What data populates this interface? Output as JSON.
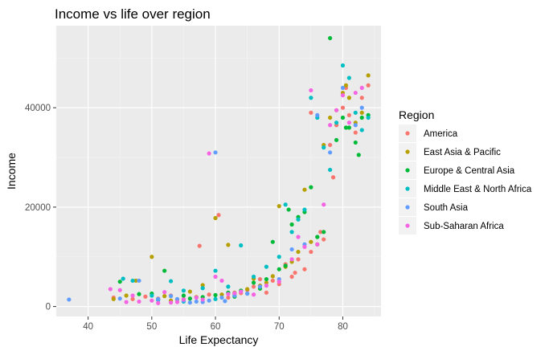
{
  "chart_data": {
    "type": "scatter",
    "title": "Income vs life over region",
    "xlabel": "Life Expectancy",
    "ylabel": "Income",
    "xlim": [
      35,
      86
    ],
    "ylim": [
      -2000,
      56500
    ],
    "x_ticks": [
      40,
      50,
      60,
      70,
      80
    ],
    "y_ticks": [
      0,
      20000,
      40000
    ],
    "grid": true,
    "legend_title": "Region",
    "legend_position": "right",
    "series": [
      {
        "name": "America",
        "color": "#F8766D",
        "points": [
          [
            44,
            1800
          ],
          [
            47,
            1500
          ],
          [
            49,
            2000
          ],
          [
            51,
            1600
          ],
          [
            53,
            2200
          ],
          [
            55,
            1500
          ],
          [
            57.5,
            12200
          ],
          [
            60.5,
            18400
          ],
          [
            63,
            2500
          ],
          [
            65,
            3300
          ],
          [
            66,
            4000
          ],
          [
            67,
            5500
          ],
          [
            69,
            5200
          ],
          [
            70,
            4500
          ],
          [
            71,
            8500
          ],
          [
            72,
            6000
          ],
          [
            73,
            9500
          ],
          [
            74,
            7500
          ],
          [
            75,
            11000
          ],
          [
            76,
            14000
          ],
          [
            77,
            13500
          ],
          [
            78,
            32500
          ],
          [
            78.5,
            26000
          ],
          [
            79,
            36500
          ],
          [
            80,
            40000
          ],
          [
            80.5,
            44000
          ],
          [
            81,
            38500
          ],
          [
            82,
            35000
          ],
          [
            83,
            42000
          ],
          [
            84,
            44500
          ],
          [
            75,
            39000
          ],
          [
            76.5,
            15000
          ],
          [
            62,
            1800
          ],
          [
            59,
            2400
          ],
          [
            68,
            2800
          ],
          [
            72.5,
            6800
          ],
          [
            64,
            2700
          ]
        ]
      },
      {
        "name": "East Asia & Pacific",
        "color": "#B79F00",
        "points": [
          [
            44,
            1500
          ],
          [
            46,
            2200
          ],
          [
            47.5,
            5200
          ],
          [
            50,
            10000
          ],
          [
            52,
            2100
          ],
          [
            54,
            1400
          ],
          [
            56,
            3000
          ],
          [
            58,
            4300
          ],
          [
            60,
            17800
          ],
          [
            62,
            12400
          ],
          [
            63,
            2800
          ],
          [
            65,
            3500
          ],
          [
            67,
            4200
          ],
          [
            68,
            4800
          ],
          [
            70,
            20200
          ],
          [
            71,
            8000
          ],
          [
            72,
            9000
          ],
          [
            73,
            11000
          ],
          [
            74,
            23500
          ],
          [
            75,
            13000
          ],
          [
            76,
            12500
          ],
          [
            77,
            32500
          ],
          [
            78,
            38000
          ],
          [
            79,
            39500
          ],
          [
            80,
            43000
          ],
          [
            80.5,
            44500
          ],
          [
            81,
            42000
          ],
          [
            82,
            37000
          ],
          [
            83,
            39000
          ],
          [
            84,
            46500
          ],
          [
            61,
            2400
          ],
          [
            57,
            1900
          ],
          [
            53,
            1200
          ],
          [
            66,
            5600
          ],
          [
            69,
            6100
          ]
        ]
      },
      {
        "name": "Europe & Central Asia",
        "color": "#00BA38",
        "points": [
          [
            45,
            5000
          ],
          [
            48,
            2500
          ],
          [
            50,
            2600
          ],
          [
            52,
            7200
          ],
          [
            55,
            2200
          ],
          [
            58,
            1900
          ],
          [
            60,
            2300
          ],
          [
            62,
            2800
          ],
          [
            64,
            3200
          ],
          [
            66,
            4800
          ],
          [
            68,
            5500
          ],
          [
            69,
            13000
          ],
          [
            70,
            7500
          ],
          [
            71,
            8200
          ],
          [
            72,
            16500
          ],
          [
            73,
            18000
          ],
          [
            74,
            19000
          ],
          [
            75,
            24000
          ],
          [
            76,
            14000
          ],
          [
            77,
            15000
          ],
          [
            78,
            54000
          ],
          [
            79,
            33500
          ],
          [
            80,
            38000
          ],
          [
            80.5,
            36000
          ],
          [
            81,
            36000
          ],
          [
            82,
            33000
          ],
          [
            83,
            38000
          ],
          [
            84,
            38500
          ],
          [
            82.5,
            30500
          ],
          [
            71.5,
            19500
          ],
          [
            67,
            3600
          ],
          [
            63,
            2000
          ],
          [
            56,
            1600
          ]
        ]
      },
      {
        "name": "Middle East & North Africa",
        "color": "#00BFC4",
        "points": [
          [
            45.5,
            5600
          ],
          [
            47,
            5200
          ],
          [
            50,
            2200
          ],
          [
            53,
            5100
          ],
          [
            55,
            3200
          ],
          [
            58,
            3700
          ],
          [
            60,
            7200
          ],
          [
            62,
            4000
          ],
          [
            64,
            12300
          ],
          [
            66,
            6000
          ],
          [
            68,
            8000
          ],
          [
            70,
            10000
          ],
          [
            71,
            20500
          ],
          [
            72,
            15000
          ],
          [
            73,
            17500
          ],
          [
            74,
            19500
          ],
          [
            75,
            42000
          ],
          [
            76,
            38000
          ],
          [
            77,
            32000
          ],
          [
            78,
            27500
          ],
          [
            79,
            37000
          ],
          [
            80,
            48500
          ],
          [
            81,
            46000
          ],
          [
            82,
            39000
          ],
          [
            83,
            35500
          ],
          [
            84,
            38000
          ],
          [
            60,
            1500
          ],
          [
            55,
            1000
          ],
          [
            51,
            1300
          ],
          [
            65,
            2600
          ]
        ]
      },
      {
        "name": "South Asia",
        "color": "#619CFF",
        "points": [
          [
            37,
            1400
          ],
          [
            45,
            1600
          ],
          [
            48,
            5200
          ],
          [
            51,
            1500
          ],
          [
            53,
            2100
          ],
          [
            55,
            1200
          ],
          [
            57,
            1000
          ],
          [
            58,
            900
          ],
          [
            59,
            1200
          ],
          [
            60,
            31000
          ],
          [
            61,
            1800
          ],
          [
            63,
            2200
          ],
          [
            65,
            2600
          ],
          [
            67,
            4000
          ],
          [
            70,
            5500
          ],
          [
            72,
            11500
          ],
          [
            74,
            12500
          ],
          [
            76,
            38500
          ],
          [
            78,
            31000
          ],
          [
            80,
            44000
          ],
          [
            82,
            36500
          ],
          [
            83,
            40000
          ],
          [
            61.5,
            1100
          ],
          [
            56,
            800
          ],
          [
            54,
            1500
          ]
        ]
      },
      {
        "name": "Sub-Saharan Africa",
        "color": "#F564E3",
        "points": [
          [
            43.5,
            3500
          ],
          [
            45,
            3300
          ],
          [
            46,
            900
          ],
          [
            48,
            1000
          ],
          [
            50,
            1200
          ],
          [
            52,
            2900
          ],
          [
            53,
            800
          ],
          [
            55,
            1400
          ],
          [
            57,
            1800
          ],
          [
            59,
            30800
          ],
          [
            60,
            6000
          ],
          [
            61,
            5200
          ],
          [
            62,
            2500
          ],
          [
            63,
            2700
          ],
          [
            64,
            3000
          ],
          [
            66,
            2400
          ],
          [
            68,
            4200
          ],
          [
            70,
            5000
          ],
          [
            72,
            9500
          ],
          [
            73,
            14000
          ],
          [
            74,
            12000
          ],
          [
            75,
            43500
          ],
          [
            76,
            12500
          ],
          [
            77,
            20500
          ],
          [
            78,
            36500
          ],
          [
            79,
            39500
          ],
          [
            80,
            42500
          ],
          [
            81,
            37000
          ],
          [
            82,
            43000
          ],
          [
            83,
            44000
          ],
          [
            54,
            900
          ],
          [
            58,
            1400
          ],
          [
            47,
            2200
          ],
          [
            51,
            700
          ]
        ]
      }
    ]
  }
}
